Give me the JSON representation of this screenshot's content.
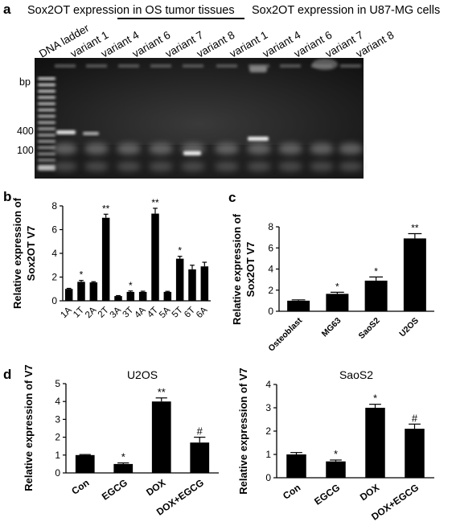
{
  "panel_a": {
    "letter": "a",
    "header_left": "Sox2OT expression in OS tumor tissues",
    "header_right": "Sox2OT expression in U87-MG cells",
    "lane_labels": [
      "DNA ladder",
      "variant 1",
      "variant 4",
      "variant 6",
      "variant 7",
      "variant 8",
      "variant 1",
      "variant 4",
      "variant 6",
      "variant 7",
      "variant 8"
    ],
    "bp_label": "bp",
    "size_markers": [
      "400",
      "100"
    ]
  },
  "chart_data": [
    {
      "panel": "b",
      "type": "bar",
      "title": "",
      "xlabel": "",
      "ylabel": "Relative expression of Sox2OT V7",
      "ylim": [
        0,
        8
      ],
      "yticks": [
        "0",
        "2",
        "4",
        "6",
        "8"
      ],
      "categories": [
        "1A",
        "1T",
        "2A",
        "2T",
        "3A",
        "3T",
        "4A",
        "4T",
        "5A",
        "5T",
        "6T",
        "6A"
      ],
      "values": [
        1.0,
        1.6,
        1.55,
        7.0,
        0.4,
        0.75,
        0.75,
        7.35,
        0.75,
        3.55,
        2.65,
        2.9
      ],
      "errors": [
        0.05,
        0.12,
        0.06,
        0.3,
        0.04,
        0.08,
        0.06,
        0.45,
        0.05,
        0.2,
        0.35,
        0.35
      ],
      "significance": [
        "",
        "*",
        "",
        "**",
        "",
        "*",
        "",
        "**",
        "",
        "*",
        "",
        ""
      ]
    },
    {
      "panel": "c",
      "type": "bar",
      "title": "",
      "xlabel": "",
      "ylabel": "Relative expression of Sox2OT V7",
      "ylim": [
        0,
        8
      ],
      "yticks": [
        "0",
        "2",
        "4",
        "6",
        "8"
      ],
      "categories": [
        "Osteoblast",
        "MG63",
        "SaoS2",
        "U2OS"
      ],
      "values": [
        1.0,
        1.65,
        2.9,
        6.9
      ],
      "errors": [
        0.08,
        0.15,
        0.35,
        0.45
      ],
      "significance": [
        "",
        "*",
        "*",
        "**"
      ]
    },
    {
      "panel": "d",
      "type": "bar",
      "title": "U2OS",
      "xlabel": "",
      "ylabel": "Relative expression of V7",
      "ylim": [
        0,
        5
      ],
      "yticks": [
        "0",
        "1",
        "2",
        "3",
        "4",
        "5"
      ],
      "categories": [
        "Con",
        "EGCG",
        "DOX",
        "DOX+EGCG"
      ],
      "values": [
        1.0,
        0.5,
        4.0,
        1.7
      ],
      "errors": [
        0.03,
        0.06,
        0.2,
        0.3
      ],
      "significance": [
        "",
        "*",
        "**",
        "#"
      ]
    },
    {
      "panel": "",
      "type": "bar",
      "title": "SaoS2",
      "xlabel": "",
      "ylabel": "Relative expression of V7",
      "ylim": [
        0,
        4
      ],
      "yticks": [
        "0",
        "1",
        "2",
        "3",
        "4"
      ],
      "categories": [
        "Con",
        "EGCG",
        "DOX",
        "DOX+EGCG"
      ],
      "values": [
        1.0,
        0.7,
        3.0,
        2.1
      ],
      "errors": [
        0.08,
        0.06,
        0.15,
        0.2
      ],
      "significance": [
        "",
        "*",
        "*",
        "#"
      ]
    }
  ]
}
